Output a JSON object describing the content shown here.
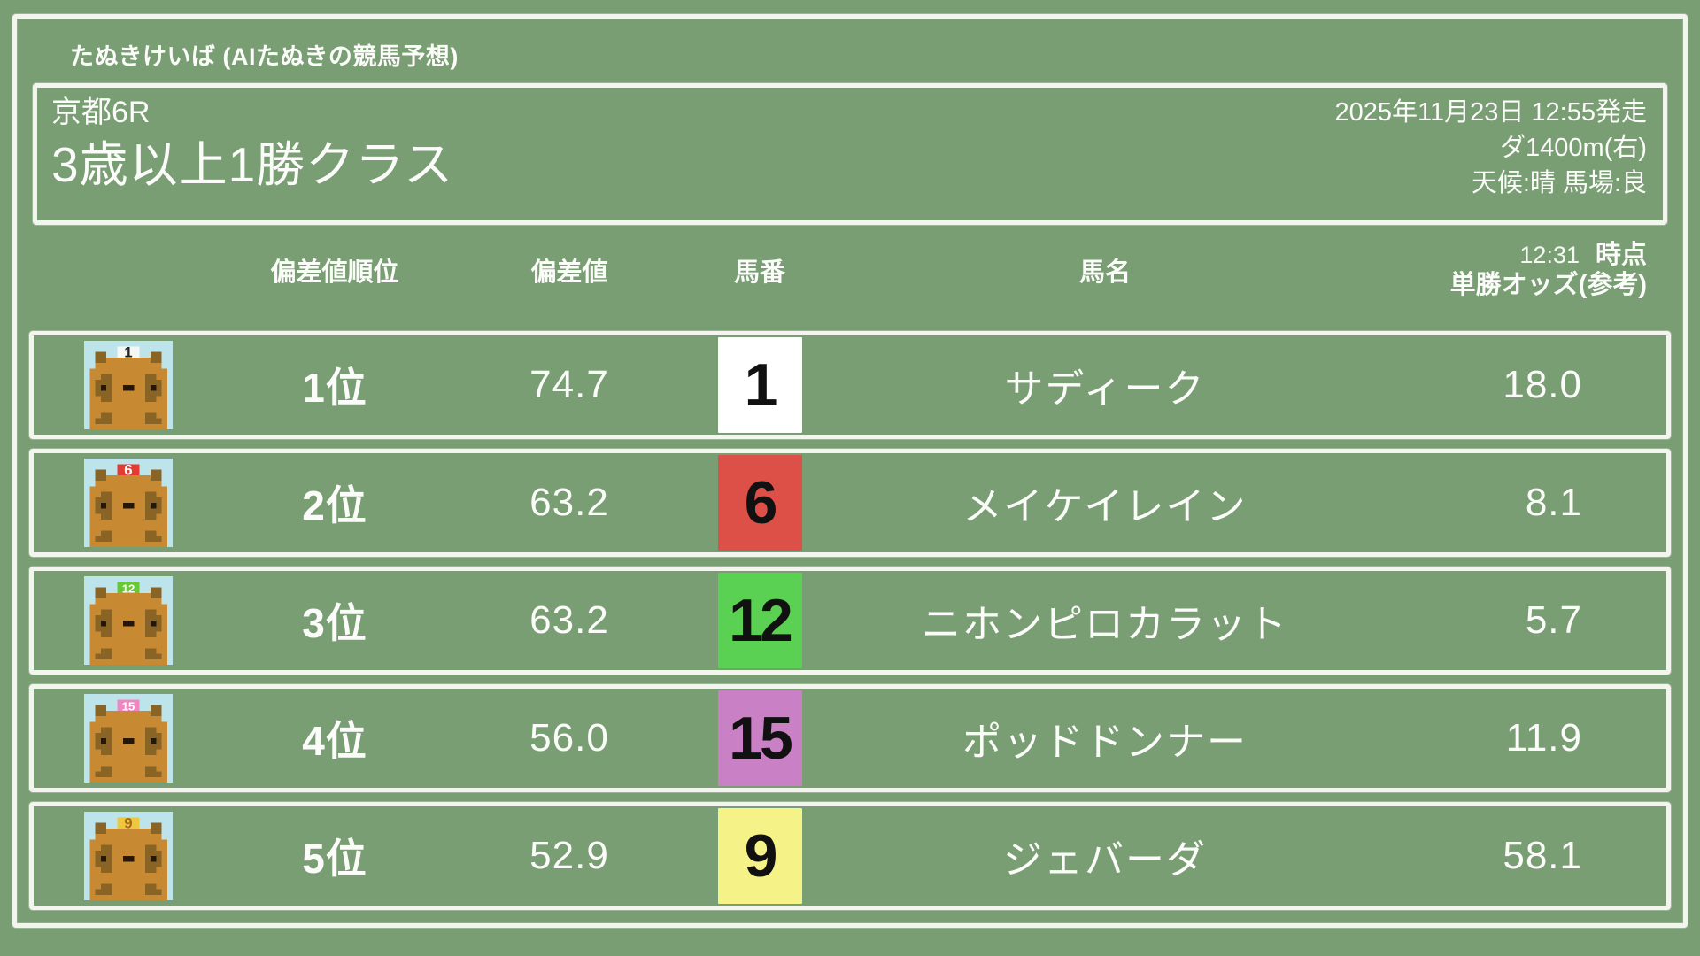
{
  "theme": {
    "background": "#7a9e74",
    "border": "#f3f5ee",
    "text": "#fbfcf9",
    "avatar_background": "#bde4ea"
  },
  "site": {
    "title": "たぬきけいば (AIたぬきの競馬予想)"
  },
  "race": {
    "course": "京都6R",
    "name": "3歳以上1勝クラス",
    "datetime": "2025年11月23日 12:55発走",
    "distance": "ダ1400m(右)",
    "conditions": "天候:晴 馬場:良"
  },
  "table": {
    "headers": {
      "rank": "偏差値順位",
      "score": "偏差値",
      "number": "馬番",
      "name": "馬名",
      "odds_time": "12:31",
      "odds_time_suffix": "時点",
      "odds_label": "単勝オッズ(参考)"
    },
    "rows": [
      {
        "rank": "1位",
        "score": "74.7",
        "number": "1",
        "name": "サディーク",
        "odds": "18.0",
        "number_bg": "#ffffff",
        "number_color": "#111111",
        "cap_color": "#f6f6f4",
        "cap_text_color": "#222222"
      },
      {
        "rank": "2位",
        "score": "63.2",
        "number": "6",
        "name": "メイケイレイン",
        "odds": "8.1",
        "number_bg": "#dd5048",
        "number_color": "#111111",
        "cap_color": "#e33a31",
        "cap_text_color": "#ffffff"
      },
      {
        "rank": "3位",
        "score": "63.2",
        "number": "12",
        "name": "ニホンピロカラット",
        "odds": "5.7",
        "number_bg": "#5bd153",
        "number_color": "#111111",
        "cap_color": "#66c833",
        "cap_text_color": "#ffffff"
      },
      {
        "rank": "4位",
        "score": "56.0",
        "number": "15",
        "name": "ポッドドンナー",
        "odds": "11.9",
        "number_bg": "#ca80c5",
        "number_color": "#111111",
        "cap_color": "#ef86c0",
        "cap_text_color": "#ffffff"
      },
      {
        "rank": "5位",
        "score": "52.9",
        "number": "9",
        "name": "ジェバーダ",
        "odds": "58.1",
        "number_bg": "#f5f287",
        "number_color": "#111111",
        "cap_color": "#edc83e",
        "cap_text_color": "#a5691c"
      }
    ]
  }
}
